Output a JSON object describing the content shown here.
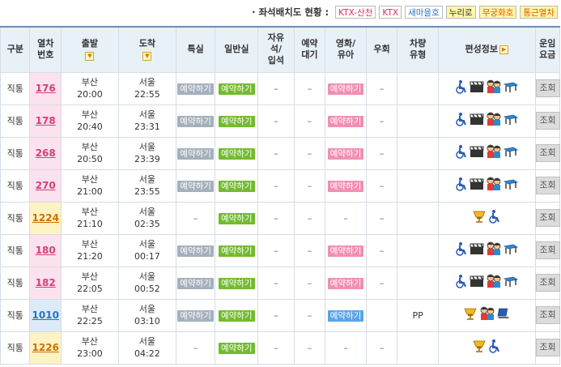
{
  "legend": {
    "title": "· 좌석배치도 현황 :",
    "items": [
      {
        "label": "KTX-산천",
        "kind": "ktx-sc"
      },
      {
        "label": "KTX",
        "kind": "ktx"
      },
      {
        "label": "새마을호",
        "kind": "saem"
      },
      {
        "label": "누리로",
        "kind": "nuri"
      },
      {
        "label": "무궁화호",
        "kind": "mugung"
      },
      {
        "label": "통근열차",
        "kind": "tong"
      }
    ]
  },
  "headers": {
    "type": "구분",
    "train_no_1": "열차",
    "train_no_2": "번호",
    "departure": "출발",
    "arrival": "도착",
    "special": "특실",
    "general": "일반실",
    "standing_1": "자유",
    "standing_2": "석/",
    "standing_3": "입석",
    "waitlist_1": "예약",
    "waitlist_2": "대기",
    "movie_1": "영화/",
    "movie_2": "유아",
    "detour": "우회",
    "car_type_1": "차량",
    "car_type_2": "유형",
    "composition": "편성정보",
    "fare_1": "운임",
    "fare_2": "요금"
  },
  "colors": {
    "ktx": "#d63f7a",
    "mugunghwa": "#cc7000",
    "saemaeul": "#2a70c4",
    "reserve_gray": "#a4b0bb",
    "reserve_green": "#72bb2e",
    "reserve_pink": "#f28eb3",
    "reserve_blue": "#5aa3e8"
  },
  "rows": [
    {
      "type": "직통",
      "train_no": "176",
      "train_class": "ktx",
      "dep_station": "부산",
      "dep_time": "20:00",
      "arr_station": "서울",
      "arr_time": "22:55",
      "special": "예약하기",
      "general": "예약하기",
      "standing": "–",
      "waitlist": "–",
      "movie": "예약하기",
      "detour": "–",
      "car_type": "",
      "icons": [
        "wheelchair-icon",
        "movie-clapper-icon",
        "children-icon",
        "table-icon"
      ],
      "lookup": "조회"
    },
    {
      "type": "직통",
      "train_no": "178",
      "train_class": "ktx",
      "dep_station": "부산",
      "dep_time": "20:40",
      "arr_station": "서울",
      "arr_time": "23:31",
      "special": "예약하기",
      "general": "예약하기",
      "standing": "–",
      "waitlist": "–",
      "movie": "예약하기",
      "detour": "–",
      "car_type": "",
      "icons": [
        "wheelchair-icon",
        "movie-clapper-icon",
        "children-icon",
        "table-icon"
      ],
      "lookup": "조회"
    },
    {
      "type": "직통",
      "train_no": "268",
      "train_class": "ktx",
      "dep_station": "부산",
      "dep_time": "20:50",
      "arr_station": "서울",
      "arr_time": "23:39",
      "special": "예약하기",
      "general": "예약하기",
      "standing": "–",
      "waitlist": "–",
      "movie": "예약하기",
      "detour": "–",
      "car_type": "",
      "icons": [
        "wheelchair-icon",
        "movie-clapper-icon",
        "children-icon",
        "table-icon"
      ],
      "lookup": "조회"
    },
    {
      "type": "직통",
      "train_no": "270",
      "train_class": "ktx",
      "dep_station": "부산",
      "dep_time": "21:00",
      "arr_station": "서울",
      "arr_time": "23:55",
      "special": "예약하기",
      "general": "예약하기",
      "standing": "–",
      "waitlist": "–",
      "movie": "예약하기",
      "detour": "–",
      "car_type": "",
      "icons": [
        "wheelchair-icon",
        "movie-clapper-icon",
        "children-icon",
        "table-icon"
      ],
      "lookup": "조회"
    },
    {
      "type": "직통",
      "train_no": "1224",
      "train_class": "mugunghwa",
      "dep_station": "부산",
      "dep_time": "21:10",
      "arr_station": "서울",
      "arr_time": "02:35",
      "special": "–",
      "general": "예약하기",
      "standing": "–",
      "waitlist": "–",
      "movie": "–",
      "detour": "–",
      "car_type": "",
      "icons": [
        "snack-cart-icon",
        "wheelchair-icon"
      ],
      "lookup": "조회"
    },
    {
      "type": "직통",
      "train_no": "180",
      "train_class": "ktx",
      "dep_station": "부산",
      "dep_time": "21:20",
      "arr_station": "서울",
      "arr_time": "00:17",
      "special": "예약하기",
      "general": "예약하기",
      "standing": "–",
      "waitlist": "–",
      "movie": "예약하기",
      "detour": "–",
      "car_type": "",
      "icons": [
        "wheelchair-icon",
        "movie-clapper-icon",
        "children-icon",
        "table-icon"
      ],
      "lookup": "조회"
    },
    {
      "type": "직통",
      "train_no": "182",
      "train_class": "ktx",
      "dep_station": "부산",
      "dep_time": "22:05",
      "arr_station": "서울",
      "arr_time": "00:52",
      "special": "예약하기",
      "general": "예약하기",
      "standing": "–",
      "waitlist": "–",
      "movie": "예약하기",
      "detour": "–",
      "car_type": "",
      "icons": [
        "wheelchair-icon",
        "movie-clapper-icon",
        "children-icon",
        "table-icon"
      ],
      "lookup": "조회"
    },
    {
      "type": "직통",
      "train_no": "1010",
      "train_class": "saemaeul",
      "dep_station": "부산",
      "dep_time": "22:25",
      "arr_station": "서울",
      "arr_time": "03:10",
      "special": "예약하기",
      "general": "예약하기",
      "standing": "–",
      "waitlist": "–",
      "movie": "예약하기",
      "detour": "",
      "car_type": "PP",
      "icons": [
        "snack-cart-icon",
        "children-icon",
        "laptop-icon"
      ],
      "lookup": "조회"
    },
    {
      "type": "직통",
      "train_no": "1226",
      "train_class": "mugunghwa",
      "dep_station": "부산",
      "dep_time": "23:00",
      "arr_station": "서울",
      "arr_time": "04:22",
      "special": "–",
      "general": "예약하기",
      "standing": "–",
      "waitlist": "–",
      "movie": "–",
      "detour": "–",
      "car_type": "",
      "icons": [
        "snack-cart-icon",
        "wheelchair-icon"
      ],
      "lookup": "조회"
    }
  ]
}
